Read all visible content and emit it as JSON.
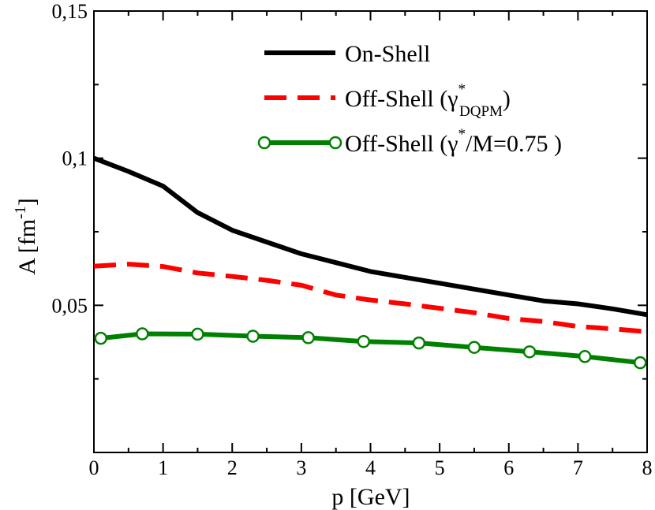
{
  "chart_data": {
    "type": "line",
    "xlabel": "p [GeV]",
    "ylabel_main": "A [fm",
    "ylabel_sup": "-1",
    "ylabel_close": "]",
    "xlim": [
      0,
      8
    ],
    "ylim": [
      0,
      0.15
    ],
    "x_ticks": [
      0,
      1,
      2,
      3,
      4,
      5,
      6,
      7,
      8
    ],
    "x_tick_labels": [
      "0",
      "1",
      "2",
      "3",
      "4",
      "5",
      "6",
      "7",
      "8"
    ],
    "y_ticks": [
      0.05,
      0.1,
      0.15
    ],
    "y_tick_labels": [
      "0,05",
      "0,1",
      "0,15"
    ],
    "grid": false,
    "legend_position": "top-right",
    "colors": {
      "on_shell": "#000000",
      "off_shell_dqpm": "#ff0000",
      "off_shell_fixed": "#008000"
    },
    "series": [
      {
        "name": "On-Shell",
        "style": "solid",
        "markers": false,
        "x": [
          0.0,
          0.5,
          1.0,
          1.5,
          2.0,
          2.5,
          3.0,
          3.5,
          4.0,
          4.5,
          5.0,
          5.5,
          6.0,
          6.5,
          7.0,
          7.5,
          8.0
        ],
        "y": [
          0.1,
          0.0955,
          0.0905,
          0.0815,
          0.0755,
          0.0715,
          0.0675,
          0.0645,
          0.0615,
          0.0595,
          0.0575,
          0.0555,
          0.0535,
          0.0515,
          0.0505,
          0.0488,
          0.0468
        ]
      },
      {
        "name": "Off-Shell (γ*DQPM)",
        "style": "dashed",
        "markers": false,
        "x": [
          0.0,
          0.5,
          1.0,
          1.5,
          2.0,
          2.5,
          3.0,
          3.5,
          4.0,
          4.5,
          5.0,
          5.5,
          6.0,
          6.5,
          7.0,
          7.5,
          8.0
        ],
        "y": [
          0.0633,
          0.064,
          0.0632,
          0.061,
          0.0598,
          0.0585,
          0.0568,
          0.0535,
          0.0518,
          0.0505,
          0.049,
          0.0475,
          0.0455,
          0.0445,
          0.0428,
          0.042,
          0.041
        ]
      },
      {
        "name": "Off-Shell (γ*/M=0.75 )",
        "style": "solid",
        "markers": true,
        "x": [
          0.1,
          0.7,
          1.5,
          2.3,
          3.1,
          3.9,
          4.7,
          5.5,
          6.3,
          7.1,
          7.9
        ],
        "y": [
          0.0388,
          0.0403,
          0.0402,
          0.0395,
          0.039,
          0.0377,
          0.0372,
          0.0357,
          0.0342,
          0.0326,
          0.0305
        ]
      }
    ],
    "legend": {
      "on_shell_label": "On-Shell",
      "dqpm_prefix": "Off-Shell (γ",
      "dqpm_sup": "*",
      "dqpm_sub": "DQPM",
      "dqpm_suffix": ")",
      "fixed_prefix": "Off-Shell (γ",
      "fixed_sup": "*",
      "fixed_suffix": "/M=0.75 )"
    }
  }
}
